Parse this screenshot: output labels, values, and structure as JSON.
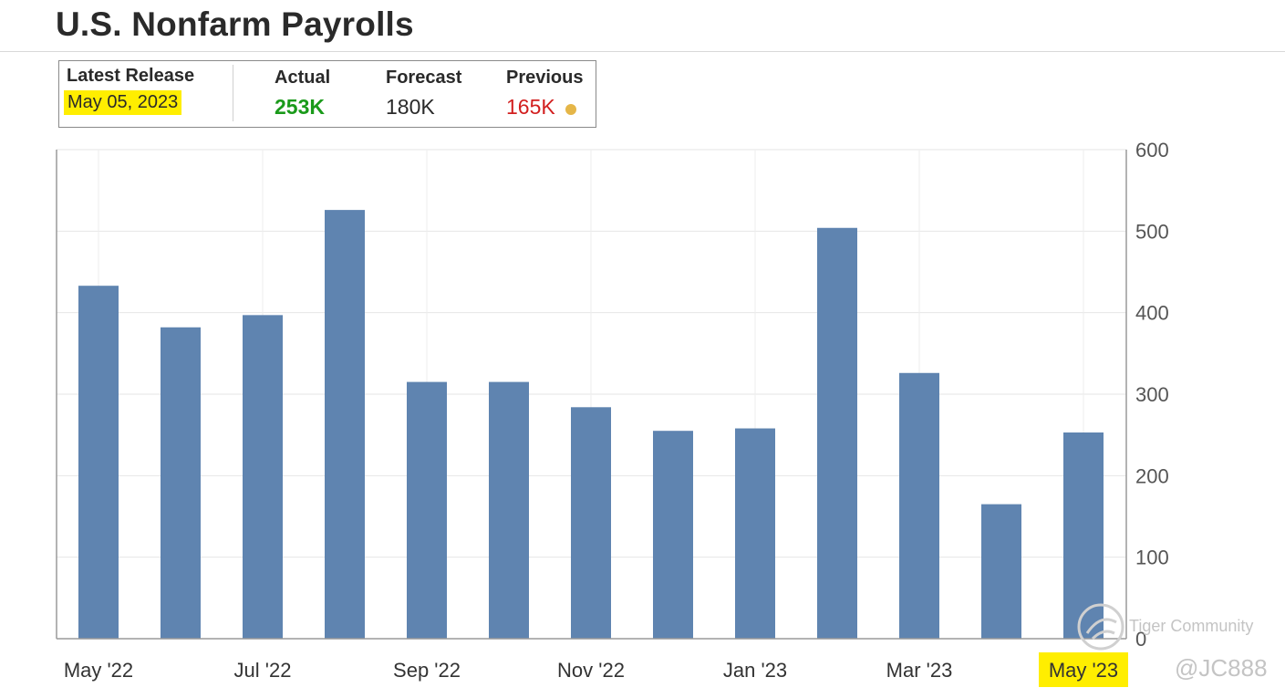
{
  "title": "U.S. Nonfarm Payrolls",
  "release": {
    "latest_label": "Latest Release",
    "date": "May 05, 2023",
    "actual_label": "Actual",
    "actual_value": "253K",
    "forecast_label": "Forecast",
    "forecast_value": "180K",
    "previous_label": "Previous",
    "previous_value": "165K"
  },
  "colors": {
    "bar": "#5f84b0",
    "actual": "#1a9a1a",
    "previous": "#d21f1f",
    "highlight": "#ffee00",
    "dot": "#e5b648"
  },
  "chart_data": {
    "type": "bar",
    "categories": [
      "May '22",
      "Jun '22",
      "Jul '22",
      "Aug '22",
      "Sep '22",
      "Oct '22",
      "Nov '22",
      "Dec '22",
      "Jan '23",
      "Feb '23",
      "Mar '23",
      "Apr '23",
      "May '23"
    ],
    "tick_labels": [
      "May '22",
      "Jul '22",
      "Sep '22",
      "Nov '22",
      "Jan '23",
      "Mar '23",
      "May '23"
    ],
    "tick_indices": [
      0,
      2,
      4,
      6,
      8,
      10,
      12
    ],
    "highlighted_tick": "May '23",
    "series": [
      {
        "values": [
          433,
          382,
          397,
          526,
          315,
          315,
          284,
          255,
          258,
          504,
          326,
          165,
          253
        ]
      }
    ],
    "ylim": [
      0,
      600
    ],
    "yticks": [
      0,
      100,
      200,
      300,
      400,
      500,
      600
    ],
    "y_axis_side": "right",
    "grid": true,
    "title": "",
    "xlabel": "",
    "ylabel": ""
  },
  "watermark": {
    "text": "Tiger Community",
    "handle": "@JC888"
  }
}
